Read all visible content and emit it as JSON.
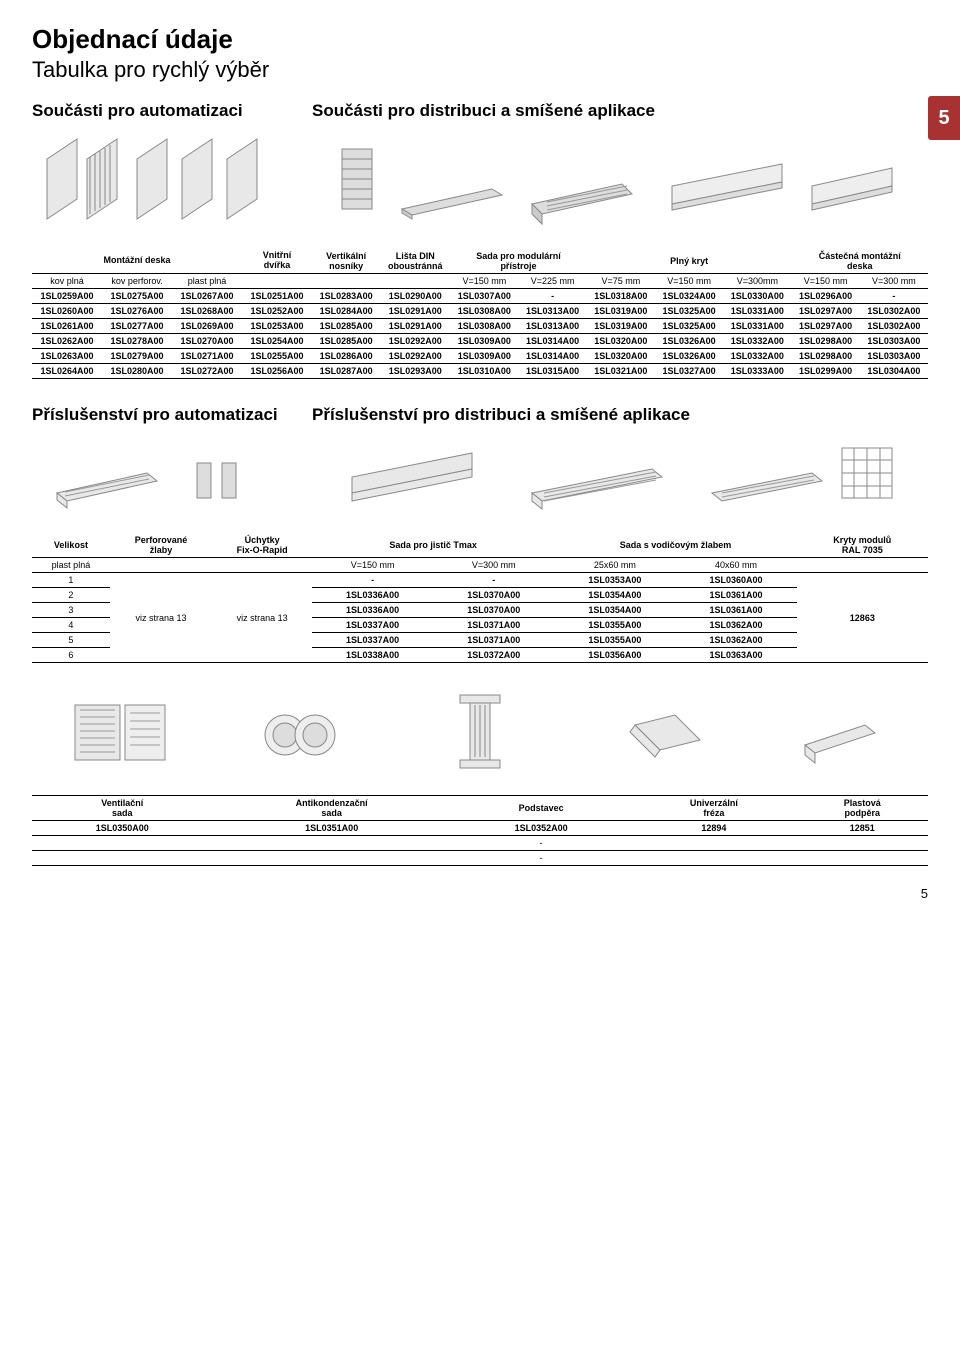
{
  "page_number_tab": "5",
  "page_number_footer": "5",
  "title": "Objednací údaje",
  "subtitle": "Tabulka pro rychlý výběr",
  "section1": {
    "left_title": "Součásti pro automatizaci",
    "right_title": "Součásti pro distribuci a smíšené aplikace",
    "left_headers_top": [
      "Montážní deska",
      "Vnitřní\ndvířka"
    ],
    "right_headers_top": [
      "Vertikální\nnosníky",
      "Lišta DIN\noboustránná",
      "Sada pro modulární\npřístroje",
      "Plný kryt",
      "Částečná montážní\ndeska"
    ],
    "left_headers_sub": [
      "kov plná",
      "kov perforov.",
      "plast plná",
      ""
    ],
    "right_headers_sub": [
      "",
      "",
      "V=150 mm",
      "V=225 mm",
      "V=75 mm",
      "V=150 mm",
      "V=300mm",
      "V=150 mm",
      "V=300 mm"
    ],
    "left_rows": [
      [
        "1SL0259A00",
        "1SL0275A00",
        "1SL0267A00",
        "1SL0251A00"
      ],
      [
        "1SL0260A00",
        "1SL0276A00",
        "1SL0268A00",
        "1SL0252A00"
      ],
      [
        "1SL0261A00",
        "1SL0277A00",
        "1SL0269A00",
        "1SL0253A00"
      ],
      [
        "1SL0262A00",
        "1SL0278A00",
        "1SL0270A00",
        "1SL0254A00"
      ],
      [
        "1SL0263A00",
        "1SL0279A00",
        "1SL0271A00",
        "1SL0255A00"
      ],
      [
        "1SL0264A00",
        "1SL0280A00",
        "1SL0272A00",
        "1SL0256A00"
      ]
    ],
    "right_rows": [
      [
        "1SL0283A00",
        "1SL0290A00",
        "1SL0307A00",
        "-",
        "1SL0318A00",
        "1SL0324A00",
        "1SL0330A00",
        "1SL0296A00",
        "-"
      ],
      [
        "1SL0284A00",
        "1SL0291A00",
        "1SL0308A00",
        "1SL0313A00",
        "1SL0319A00",
        "1SL0325A00",
        "1SL0331A00",
        "1SL0297A00",
        "1SL0302A00"
      ],
      [
        "1SL0285A00",
        "1SL0291A00",
        "1SL0308A00",
        "1SL0313A00",
        "1SL0319A00",
        "1SL0325A00",
        "1SL0331A00",
        "1SL0297A00",
        "1SL0302A00"
      ],
      [
        "1SL0285A00",
        "1SL0292A00",
        "1SL0309A00",
        "1SL0314A00",
        "1SL0320A00",
        "1SL0326A00",
        "1SL0332A00",
        "1SL0298A00",
        "1SL0303A00"
      ],
      [
        "1SL0286A00",
        "1SL0292A00",
        "1SL0309A00",
        "1SL0314A00",
        "1SL0320A00",
        "1SL0326A00",
        "1SL0332A00",
        "1SL0298A00",
        "1SL0303A00"
      ],
      [
        "1SL0287A00",
        "1SL0293A00",
        "1SL0310A00",
        "1SL0315A00",
        "1SL0321A00",
        "1SL0327A00",
        "1SL0333A00",
        "1SL0299A00",
        "1SL0304A00"
      ]
    ]
  },
  "section2": {
    "left_title": "Příslušenství pro automatizaci",
    "right_title": "Příslušenství pro distribuci a smíšené aplikace",
    "left_headers_top": [
      "Velikost",
      "Perforované\nžlaby",
      "Úchytky\nFix-O-Rapid"
    ],
    "right_headers_top": [
      "Sada pro jistič Tmax",
      "Sada s vodičovým žlabem",
      "Kryty modulů\nRAL 7035"
    ],
    "left_sub": [
      "plast plná",
      "",
      ""
    ],
    "right_sub": [
      "V=150 mm",
      "V=300 mm",
      "25x60 mm",
      "40x60 mm",
      ""
    ],
    "left_rows": [
      [
        "1",
        "",
        "viz strana 13"
      ],
      [
        "2",
        "viz strana 13",
        ""
      ],
      [
        "3",
        "",
        ""
      ],
      [
        "4",
        "",
        ""
      ],
      [
        "5",
        "",
        ""
      ],
      [
        "6",
        "",
        ""
      ]
    ],
    "left_col1": [
      "1",
      "2",
      "3",
      "4",
      "5",
      "6"
    ],
    "left_merge_col2": "viz strana 13",
    "left_merge_col3": "viz strana 13",
    "right_rows": [
      [
        "-",
        "-",
        "1SL0353A00",
        "1SL0360A00",
        ""
      ],
      [
        "1SL0336A00",
        "1SL0370A00",
        "1SL0354A00",
        "1SL0361A00",
        ""
      ],
      [
        "1SL0336A00",
        "1SL0370A00",
        "1SL0354A00",
        "1SL0361A00",
        ""
      ],
      [
        "1SL0337A00",
        "1SL0371A00",
        "1SL0355A00",
        "1SL0362A00",
        ""
      ],
      [
        "1SL0337A00",
        "1SL0371A00",
        "1SL0355A00",
        "1SL0362A00",
        ""
      ],
      [
        "1SL0338A00",
        "1SL0372A00",
        "1SL0356A00",
        "1SL0363A00",
        ""
      ]
    ],
    "right_merge_col5": "12863"
  },
  "section3": {
    "labels": [
      "Ventilační\nsada",
      "Antikondenzační\nsada",
      "Podstavec",
      "Univerzální\nfréza",
      "Plastová\npodpěra"
    ],
    "row1": [
      "1SL0350A00",
      "1SL0351A00",
      "1SL0352A00",
      "12894",
      "12851"
    ],
    "row2": [
      "",
      "",
      "-",
      "",
      ""
    ],
    "row3": [
      "",
      "",
      "-",
      "",
      ""
    ]
  }
}
